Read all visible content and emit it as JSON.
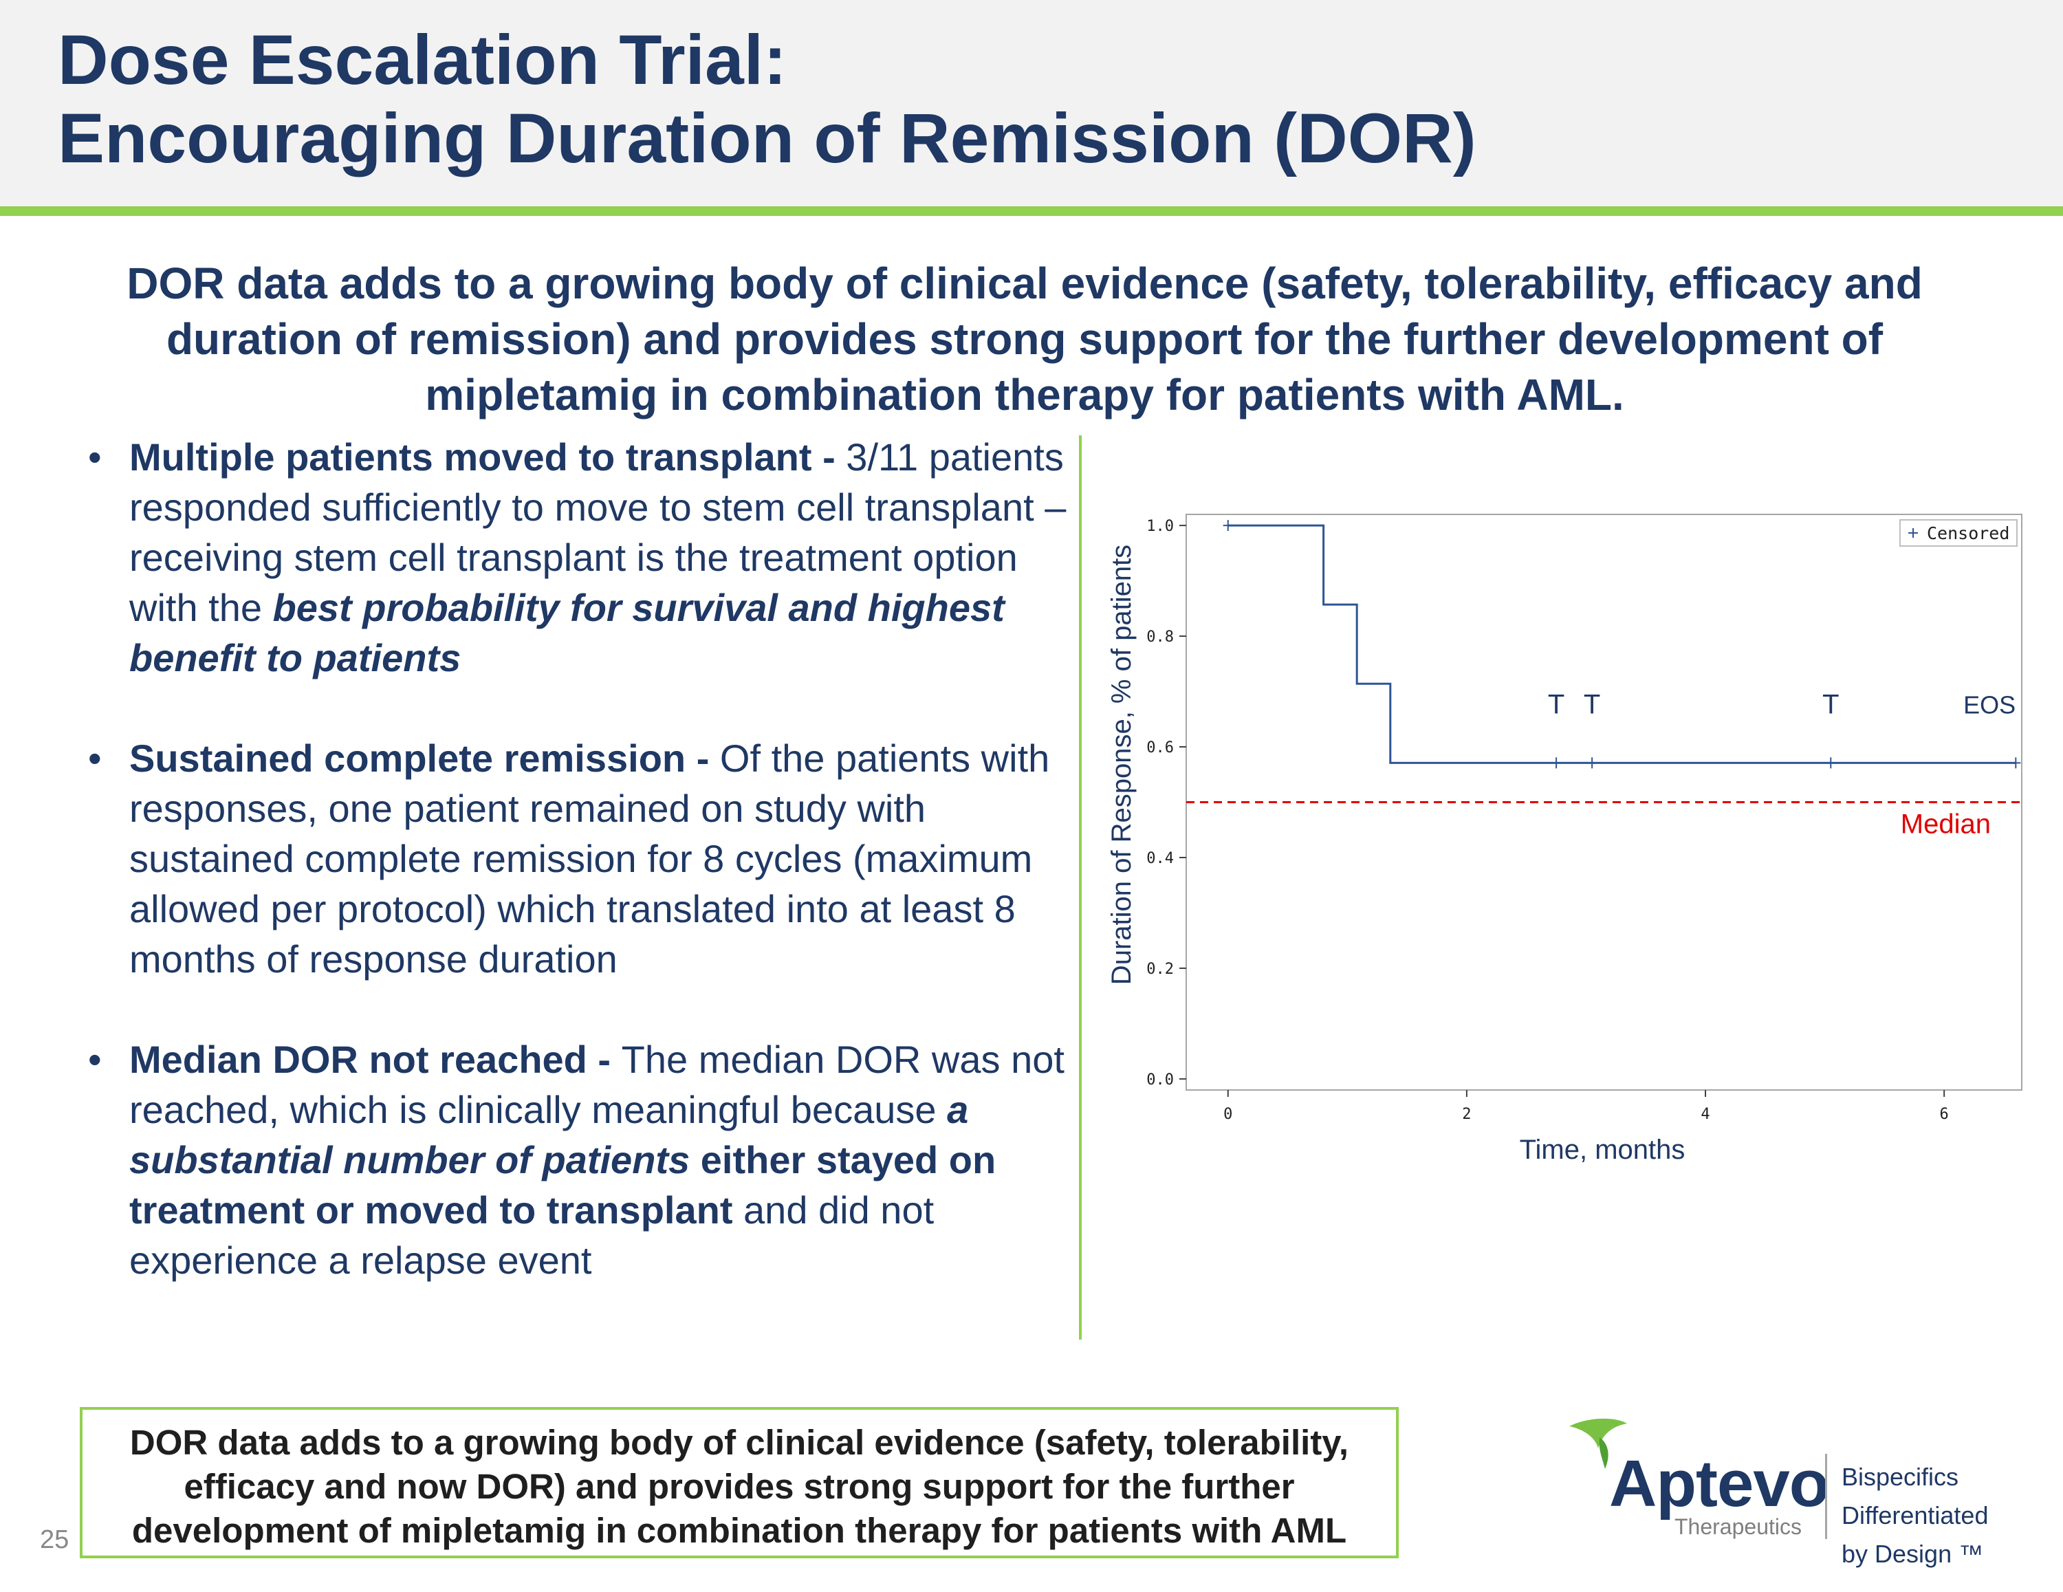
{
  "header": {
    "title_line1": "Dose Escalation Trial:",
    "title_line2": "Encouraging Duration of Remission (DOR)"
  },
  "subtitle": "DOR data adds to a growing body of clinical evidence (safety, tolerability, efficacy and duration of remission) and provides strong support for the further development of mipletamig in combination therapy for patients with AML.",
  "bullets": [
    {
      "lead": "Multiple patients moved to transplant - ",
      "text": "3/11 patients responded sufficiently to move to stem cell transplant – receiving stem cell transplant is the treatment option with the ",
      "emphasis": "best probability for survival and highest benefit to patients"
    },
    {
      "lead": "Sustained complete remission - ",
      "text": "Of the patients with responses, one patient remained on study with sustained complete remission for 8 cycles (maximum allowed per protocol) which translated into at least 8 months of response duration"
    },
    {
      "lead": "Median DOR not reached - ",
      "text": "The median DOR was not reached, which is clinically meaningful because ",
      "emphasis": "a substantial number of patients",
      "bold_text": " either stayed on treatment or moved to transplant",
      "tail": " and did not experience a relapse event"
    }
  ],
  "chart_data": {
    "type": "line",
    "subtype": "kaplan-meier step",
    "title": "",
    "xlabel": "Time, months",
    "ylabel": "Duration of Response, % of patients",
    "xlim": [
      -0.35,
      6.65
    ],
    "ylim": [
      -0.02,
      1.02
    ],
    "xticks": [
      0,
      2,
      4,
      6
    ],
    "xtick_labels": [
      "0",
      "2",
      "4",
      "6"
    ],
    "yticks": [
      0.0,
      0.2,
      0.4,
      0.6,
      0.8,
      1.0
    ],
    "ytick_labels": [
      "0.0",
      "0.2",
      "0.4",
      "0.6",
      "0.8",
      "1.0"
    ],
    "grid": false,
    "legend": {
      "position": "top-right",
      "entries": [
        "Censored"
      ],
      "marker": "+"
    },
    "series": [
      {
        "values_step": [
          {
            "x": 0.0,
            "y": 1.0
          },
          {
            "x": 0.8,
            "y": 0.857
          },
          {
            "x": 1.08,
            "y": 0.714
          },
          {
            "x": 1.36,
            "y": 0.571
          },
          {
            "x": 6.6,
            "y": 0.571
          }
        ],
        "color": "#2f5597"
      }
    ],
    "censored": [
      {
        "x": 0.0,
        "y": 1.0
      },
      {
        "x": 2.75,
        "y": 0.571
      },
      {
        "x": 3.05,
        "y": 0.571
      },
      {
        "x": 5.05,
        "y": 0.571
      },
      {
        "x": 6.6,
        "y": 0.571
      }
    ],
    "median_line": {
      "y": 0.5,
      "label": "Median",
      "color": "#e00000"
    },
    "annotations": [
      {
        "text": "T",
        "x": 2.75,
        "y": 0.66
      },
      {
        "text": "T",
        "x": 3.05,
        "y": 0.66
      },
      {
        "text": "T",
        "x": 5.05,
        "y": 0.66
      },
      {
        "text": "EOS",
        "x": 6.38,
        "y": 0.66
      }
    ]
  },
  "conclusion": {
    "line1": "DOR data adds to a growing body of clinical evidence (safety, tolerability,",
    "line2": "efficacy and now DOR) and provides strong support for the further",
    "line3": "development of mipletamig in combination therapy for patients with AML"
  },
  "footer": {
    "slide_number": "25",
    "logo_name": "Aptevo",
    "logo_sub": "Therapeutics",
    "tagline_1": "Bispecifics",
    "tagline_2": "Differentiated",
    "tagline_3": "by Design ™"
  },
  "colors": {
    "navy": "#1f3864",
    "green": "#92d050",
    "header_bg": "#f2f2f2",
    "median_red": "#e00000",
    "km_line": "#2f5597"
  }
}
